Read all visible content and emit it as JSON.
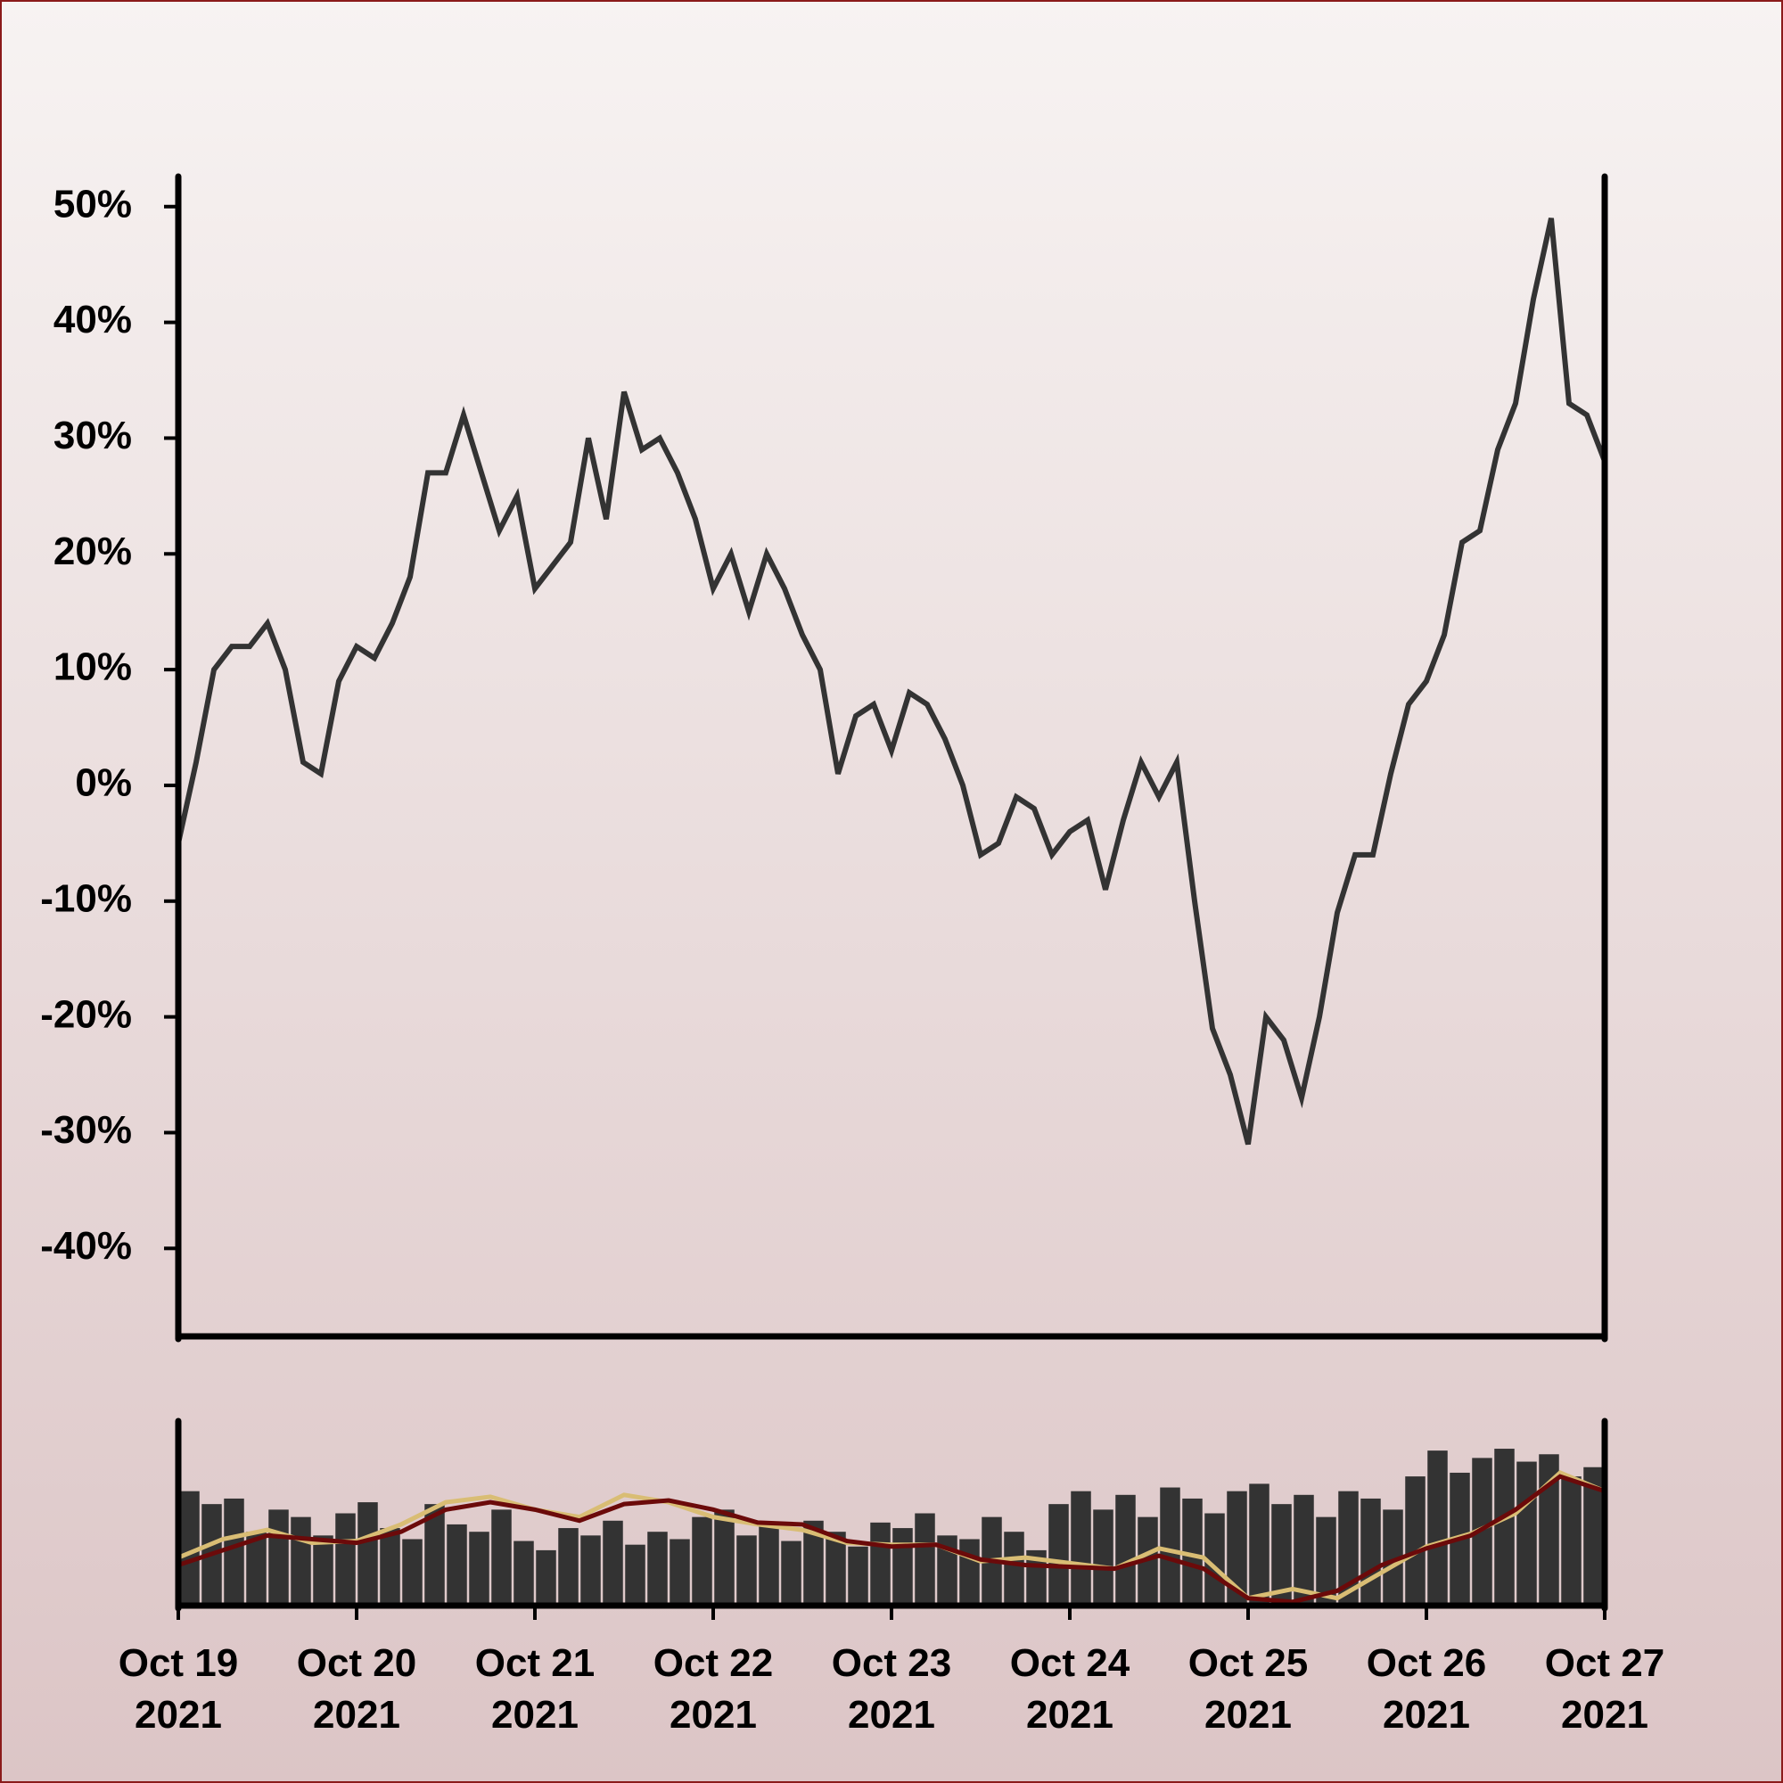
{
  "chart_data": [
    {
      "type": "line",
      "color": "#333333",
      "xlim": [
        "2021-10-19",
        "2021-10-27"
      ],
      "ylim": [
        -47.6,
        52.6
      ],
      "yticks": [
        {
          "value": -40,
          "label": "-40%"
        },
        {
          "value": -30,
          "label": "-30%"
        },
        {
          "value": -20,
          "label": "-20%"
        },
        {
          "value": -10,
          "label": "-10%"
        },
        {
          "value": 0,
          "label": "0%"
        },
        {
          "value": 10,
          "label": "10%"
        },
        {
          "value": 20,
          "label": "20%"
        },
        {
          "value": 30,
          "label": "30%"
        },
        {
          "value": 40,
          "label": "40%"
        },
        {
          "value": 50,
          "label": "50%"
        }
      ],
      "values": [
        -5,
        2,
        10,
        12,
        12,
        14,
        10,
        2,
        1,
        9,
        12,
        11,
        14,
        18,
        27,
        27,
        32,
        27,
        22,
        25,
        17,
        19,
        21,
        30,
        23,
        34,
        29,
        30,
        27,
        23,
        17,
        20,
        15,
        20,
        17,
        13,
        10,
        1,
        6,
        7,
        3,
        8,
        7,
        4,
        0,
        -6,
        -5,
        -1,
        -2,
        -6,
        -4,
        -3,
        -9,
        -3,
        2,
        -1,
        2,
        -10,
        -21,
        -25,
        -31,
        -20,
        -22,
        -27,
        -20,
        -11,
        -6,
        -6,
        1,
        7,
        9,
        13,
        21,
        22,
        29,
        33,
        42,
        49,
        33,
        32,
        28
      ]
    },
    {
      "type": "bar",
      "color": "#333333",
      "xlim": [
        "2021-10-19",
        "2021-10-27"
      ],
      "ylim": [
        0,
        100
      ],
      "xticks": [
        {
          "value": "2021-10-19",
          "label": "Oct 19\n2021"
        },
        {
          "value": "2021-10-20",
          "label": "Oct 20\n2021"
        },
        {
          "value": "2021-10-21",
          "label": "Oct 21\n2021"
        },
        {
          "value": "2021-10-22",
          "label": "Oct 22\n2021"
        },
        {
          "value": "2021-10-23",
          "label": "Oct 23\n2021"
        },
        {
          "value": "2021-10-24",
          "label": "Oct 24\n2021"
        },
        {
          "value": "2021-10-25",
          "label": "Oct 25\n2021"
        },
        {
          "value": "2021-10-26",
          "label": "Oct 26\n2021"
        },
        {
          "value": "2021-10-27",
          "label": "Oct 27\n2021"
        }
      ],
      "values": [
        62,
        55,
        58,
        40,
        52,
        48,
        38,
        50,
        56,
        42,
        36,
        55,
        44,
        40,
        52,
        35,
        30,
        42,
        38,
        46,
        33,
        40,
        36,
        48,
        52,
        38,
        44,
        35,
        46,
        40,
        32,
        45,
        42,
        50,
        38,
        36,
        48,
        40,
        30,
        55,
        62,
        52,
        60,
        48,
        64,
        58,
        50,
        62,
        66,
        55,
        60,
        48,
        62,
        58,
        52,
        70,
        84,
        72,
        80,
        85,
        78,
        82,
        70,
        75
      ],
      "lines": [
        {
          "color": "#d9bd74",
          "values": [
            26,
            36,
            41,
            34,
            35,
            44,
            56,
            59,
            52,
            48,
            60,
            56,
            48,
            44,
            41,
            34,
            33,
            33,
            24,
            26,
            23,
            20,
            31,
            26,
            4,
            9,
            4,
            18,
            32,
            39,
            50,
            72,
            62
          ]
        },
        {
          "color": "#6b0a0a",
          "values": [
            22,
            30,
            38,
            36,
            34,
            40,
            52,
            56,
            52,
            46,
            55,
            57,
            52,
            45,
            44,
            35,
            32,
            33,
            25,
            22,
            21,
            20,
            27,
            20,
            4,
            2,
            8,
            22,
            31,
            38,
            52,
            70,
            62
          ]
        }
      ]
    }
  ]
}
